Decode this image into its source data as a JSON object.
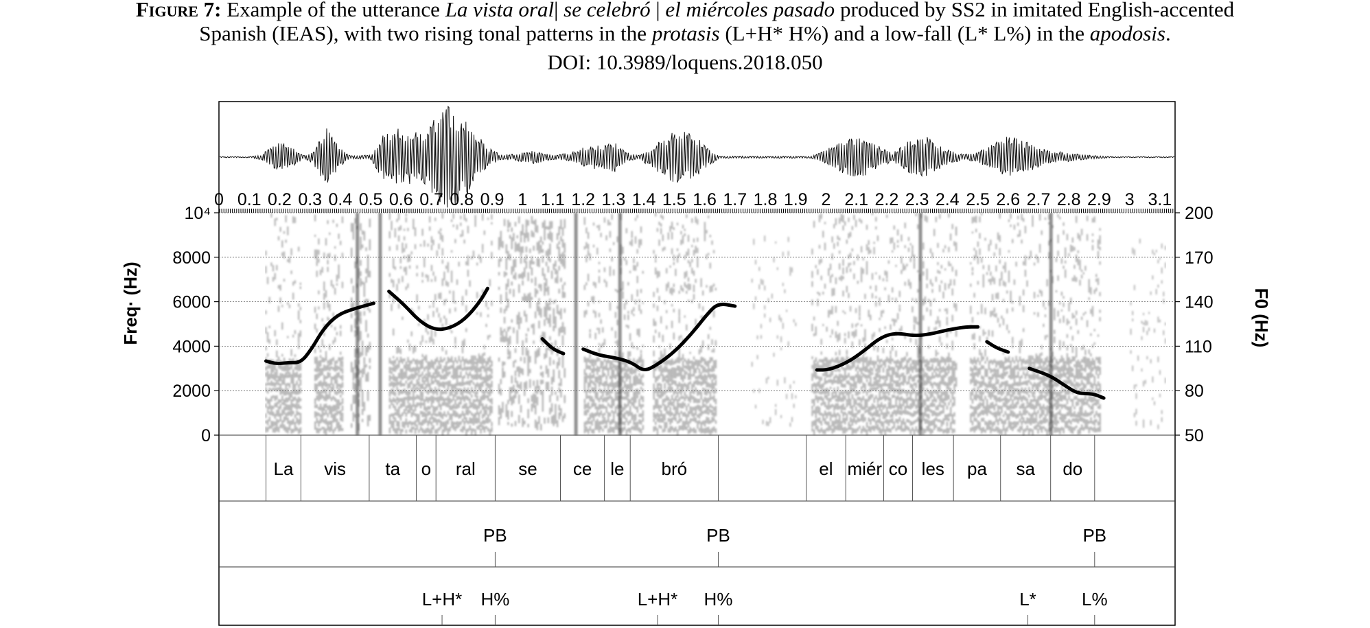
{
  "caption": {
    "label": "Figure 7:",
    "line1_a": "Example of the utterance ",
    "line1_b": "La vista oral",
    "line1_sep1": "|",
    "line1_c": "se celebró",
    "line1_sep2": "|",
    "line1_d": "el miércoles pasado",
    "line1_e": " produced by SS2 in imitated English-accented",
    "line2_a": "Spanish (IEAS), with two rising tonal patterns in the ",
    "line2_b": "protasis",
    "line2_c": " (L+H* H%) and a low-fall (L* L%) in the ",
    "line2_d": "apodosis",
    "line2_e": ".",
    "doi": "DOI: 10.3989/loquens.2018.050"
  },
  "chart_data": {
    "type": "spectrogram-pitch",
    "time_ticks": [
      "0",
      "0.1",
      "0.2",
      "0.3",
      "0.4",
      "0.5",
      "0.6",
      "0.7",
      "0.8",
      "0.9",
      "1",
      "1.1",
      "1.2",
      "1.3",
      "1.4",
      "1.5",
      "1.6",
      "1.7",
      "1.8",
      "1.9",
      "2",
      "2.1",
      "2.2",
      "2.3",
      "2.4",
      "2.5",
      "2.6",
      "2.7",
      "2.8",
      "2.9",
      "3",
      "3.1"
    ],
    "time_range": [
      0,
      3.15
    ],
    "freq_axis": {
      "label": "Freq· (Hz)",
      "ticks": [
        0,
        2000,
        4000,
        6000,
        8000,
        10000
      ],
      "tick_labels": [
        "0",
        "2000",
        "4000",
        "6000",
        "8000",
        "10⁴"
      ],
      "range": [
        0,
        10000
      ]
    },
    "f0_axis": {
      "label": "F0 (Hz)",
      "ticks": [
        50,
        80,
        110,
        140,
        170,
        200
      ],
      "range": [
        50,
        200
      ]
    },
    "pitch_segments": [
      [
        [
          0.155,
          100
        ],
        [
          0.19,
          98
        ],
        [
          0.23,
          99
        ],
        [
          0.27,
          99
        ],
        [
          0.305,
          108
        ],
        [
          0.345,
          122
        ],
        [
          0.39,
          131
        ],
        [
          0.44,
          135
        ],
        [
          0.51,
          139
        ]
      ],
      [
        [
          0.56,
          147
        ],
        [
          0.61,
          138
        ],
        [
          0.66,
          127
        ],
        [
          0.71,
          121
        ],
        [
          0.76,
          122
        ],
        [
          0.81,
          128
        ],
        [
          0.86,
          140
        ],
        [
          0.885,
          149
        ]
      ],
      [
        [
          1.065,
          115
        ],
        [
          1.1,
          108
        ],
        [
          1.135,
          105
        ]
      ],
      [
        [
          1.2,
          108
        ],
        [
          1.25,
          104
        ],
        [
          1.31,
          102
        ],
        [
          1.36,
          99
        ],
        [
          1.4,
          93
        ],
        [
          1.44,
          97
        ],
        [
          1.5,
          106
        ],
        [
          1.56,
          119
        ],
        [
          1.61,
          132
        ],
        [
          1.645,
          139
        ],
        [
          1.7,
          137
        ]
      ],
      [
        [
          1.97,
          94
        ],
        [
          2.01,
          94
        ],
        [
          2.07,
          99
        ],
        [
          2.12,
          106
        ],
        [
          2.18,
          116
        ],
        [
          2.23,
          119
        ],
        [
          2.29,
          117
        ],
        [
          2.34,
          118
        ],
        [
          2.4,
          121
        ],
        [
          2.46,
          123
        ],
        [
          2.5,
          123
        ]
      ],
      [
        [
          2.53,
          113
        ],
        [
          2.56,
          109
        ],
        [
          2.6,
          106
        ]
      ],
      [
        [
          2.67,
          95
        ],
        [
          2.74,
          90
        ],
        [
          2.79,
          83
        ],
        [
          2.83,
          78
        ],
        [
          2.88,
          78
        ],
        [
          2.915,
          75
        ]
      ]
    ],
    "syllables": [
      {
        "label": "La",
        "start": 0.155,
        "end": 0.27
      },
      {
        "label": "vis",
        "start": 0.27,
        "end": 0.495
      },
      {
        "label": "ta",
        "start": 0.495,
        "end": 0.65
      },
      {
        "label": "o",
        "start": 0.65,
        "end": 0.715
      },
      {
        "label": "ral",
        "start": 0.715,
        "end": 0.91
      },
      {
        "label": "se",
        "start": 0.91,
        "end": 1.125
      },
      {
        "label": "ce",
        "start": 1.125,
        "end": 1.27
      },
      {
        "label": "le",
        "start": 1.27,
        "end": 1.355
      },
      {
        "label": "bró",
        "start": 1.355,
        "end": 1.645
      },
      {
        "label": "",
        "start": 1.645,
        "end": 1.935
      },
      {
        "label": "el",
        "start": 1.935,
        "end": 2.065
      },
      {
        "label": "miér",
        "start": 2.065,
        "end": 2.19
      },
      {
        "label": "co",
        "start": 2.19,
        "end": 2.285
      },
      {
        "label": "les",
        "start": 2.285,
        "end": 2.42
      },
      {
        "label": "pa",
        "start": 2.42,
        "end": 2.575
      },
      {
        "label": "sa",
        "start": 2.575,
        "end": 2.74
      },
      {
        "label": "do",
        "start": 2.74,
        "end": 2.885
      }
    ],
    "break_tier": [
      {
        "label": "PB",
        "time": 0.91
      },
      {
        "label": "PB",
        "time": 1.645
      },
      {
        "label": "PB",
        "time": 2.885
      }
    ],
    "tone_tier": [
      {
        "label": "L+H*",
        "time": 0.735
      },
      {
        "label": "H%",
        "time": 0.91
      },
      {
        "label": "L+H*",
        "time": 1.445
      },
      {
        "label": "H%",
        "time": 1.645
      },
      {
        "label": "L*",
        "time": 2.665
      },
      {
        "label": "L%",
        "time": 2.885
      }
    ]
  }
}
